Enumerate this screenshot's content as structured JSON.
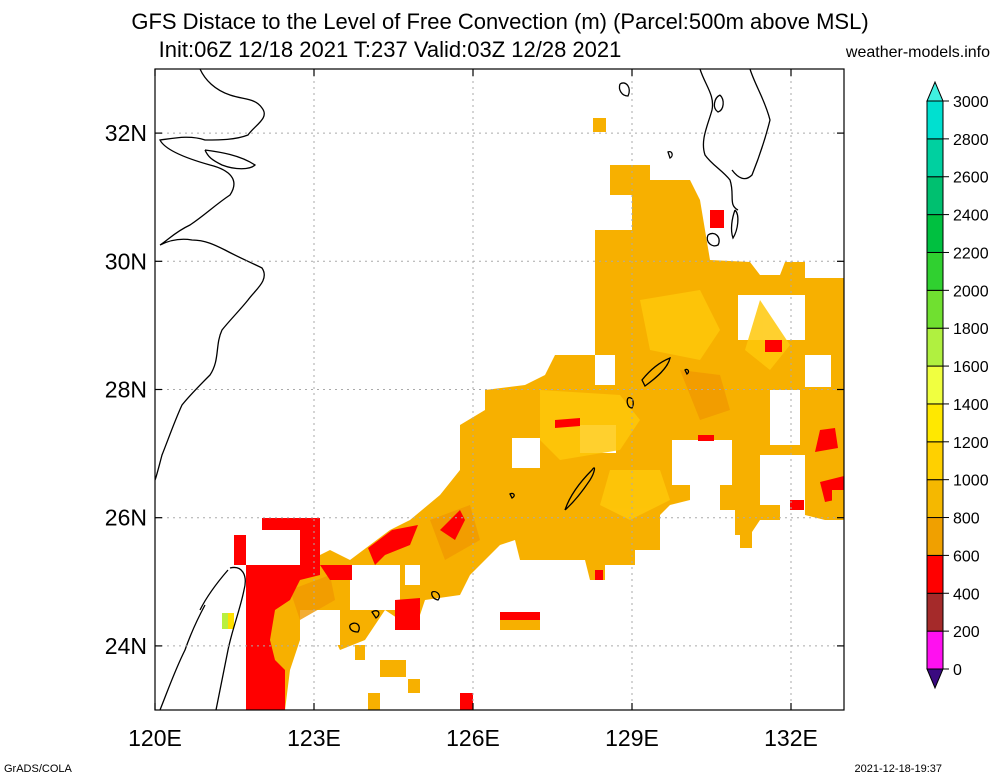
{
  "header": {
    "title_line1": "GFS Distace to the Level of Free Convection (m) (Parcel:500m above MSL)",
    "title_line2": "Init:06Z 12/18 2021 T:237 Valid:03Z 12/28 2021",
    "site": "weather-models.info"
  },
  "map": {
    "lon_range": [
      120,
      133
    ],
    "lat_range": [
      23,
      33
    ],
    "lon_ticks": [
      {
        "value": 120,
        "label": "120E"
      },
      {
        "value": 123,
        "label": "123E"
      },
      {
        "value": 126,
        "label": "126E"
      },
      {
        "value": 129,
        "label": "129E"
      },
      {
        "value": 132,
        "label": "132E"
      }
    ],
    "lat_ticks": [
      {
        "value": 24,
        "label": "24N"
      },
      {
        "value": 26,
        "label": "26N"
      },
      {
        "value": 28,
        "label": "28N"
      },
      {
        "value": 30,
        "label": "30N"
      },
      {
        "value": 32,
        "label": "32N"
      }
    ],
    "grid": "dotted"
  },
  "colorbar": {
    "levels": [
      {
        "label": "0",
        "color": "#3a0a80"
      },
      {
        "label": "200",
        "color": "#ff10f0"
      },
      {
        "label": "400",
        "color": "#a52a2a"
      },
      {
        "label": "600",
        "color": "#ff0000"
      },
      {
        "label": "800",
        "color": "#f0a000"
      },
      {
        "label": "1000",
        "color": "#f5b800"
      },
      {
        "label": "1200",
        "color": "#ffd000"
      },
      {
        "label": "1400",
        "color": "#ffe800"
      },
      {
        "label": "1600",
        "color": "#f0ff40"
      },
      {
        "label": "1800",
        "color": "#b0f040"
      },
      {
        "label": "2000",
        "color": "#70e030"
      },
      {
        "label": "2200",
        "color": "#30d030"
      },
      {
        "label": "2400",
        "color": "#00c040"
      },
      {
        "label": "2600",
        "color": "#00c070"
      },
      {
        "label": "2800",
        "color": "#00d0a0"
      },
      {
        "label": "3000",
        "color": "#00e0d0"
      }
    ],
    "top_color": "#40f0e0"
  },
  "footer": {
    "left": "GrADS/COLA",
    "right": "2021-12-18-19:37"
  }
}
